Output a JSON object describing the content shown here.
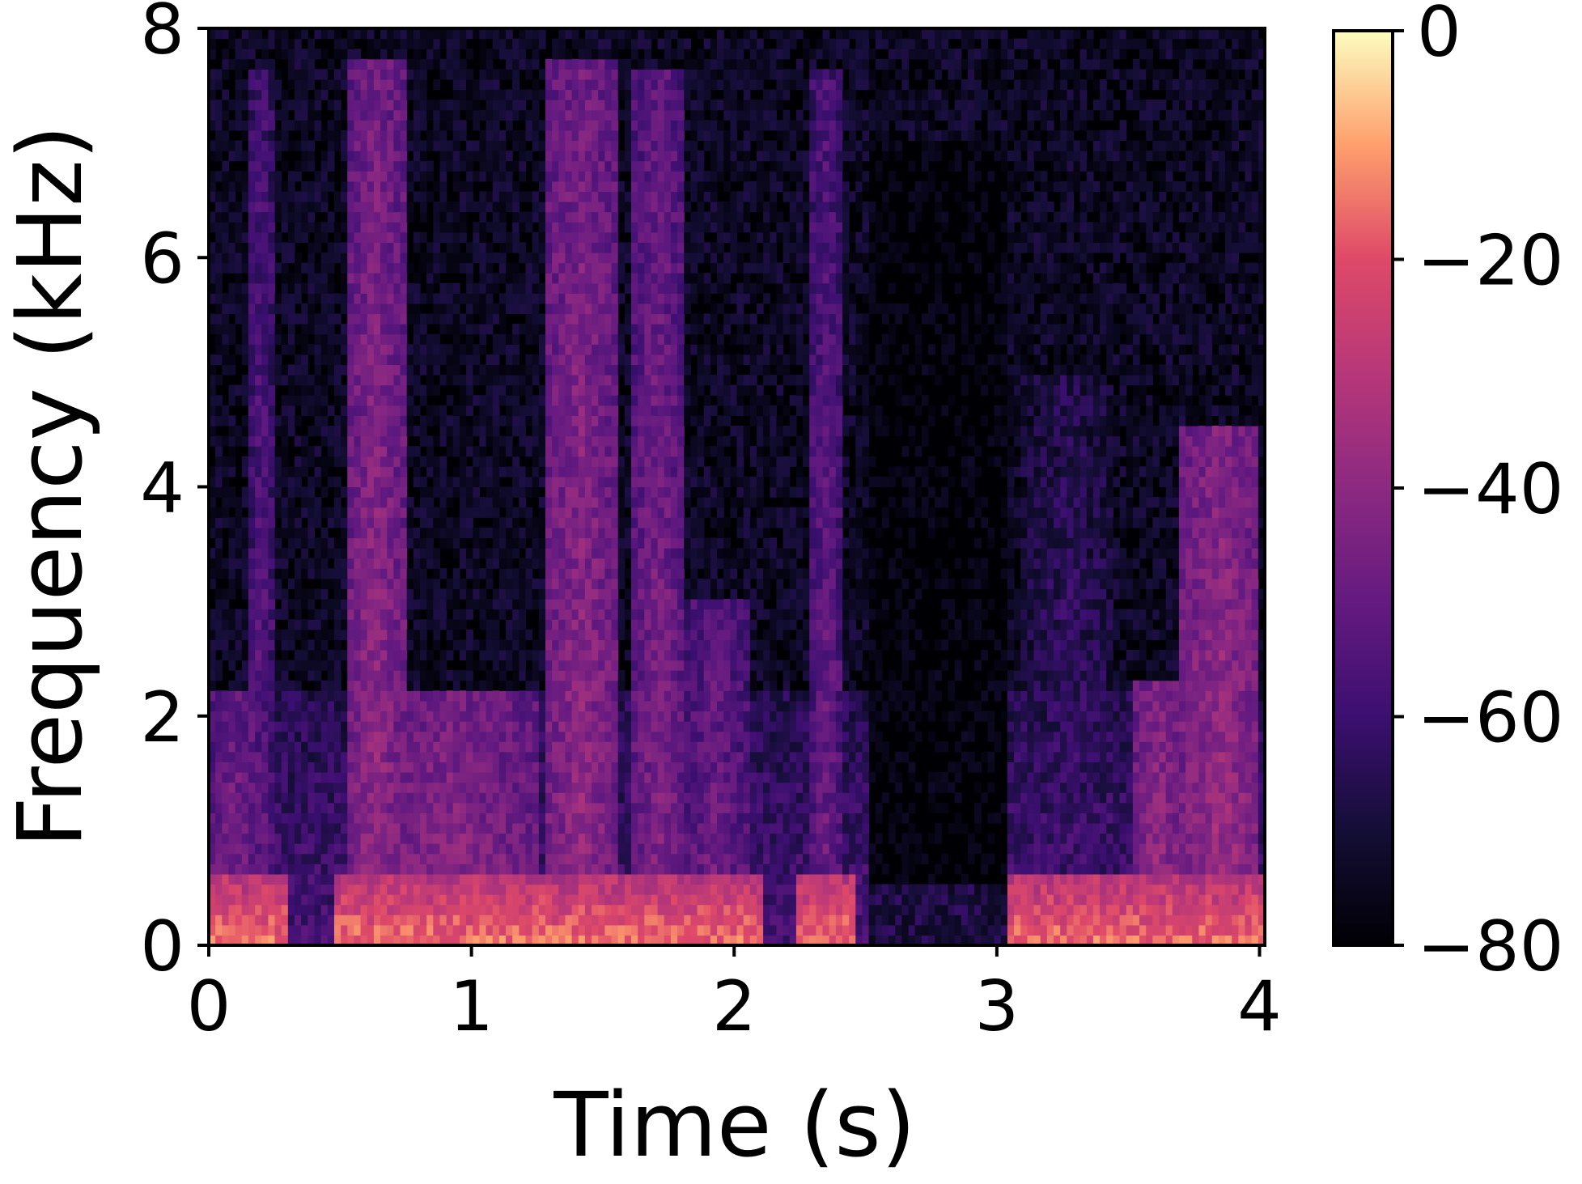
{
  "chart_data": {
    "type": "heatmap",
    "subtype": "spectrogram",
    "xlabel": "Time (s)",
    "ylabel": "Frequency (kHz)",
    "xlim": [
      0,
      4.02
    ],
    "ylim": [
      0,
      8
    ],
    "x_ticks": [
      "0",
      "1",
      "2",
      "3",
      "4"
    ],
    "y_ticks": [
      "0",
      "2",
      "4",
      "6",
      "8"
    ],
    "colormap": "magma",
    "colorbar": {
      "range": [
        -80,
        0
      ],
      "ticks": [
        "0",
        "−20",
        "−40",
        "−60",
        "−80"
      ]
    },
    "grid": false,
    "energy_events": [
      {
        "t_start": 0.0,
        "t_end": 0.2,
        "f_max_khz": 2.2,
        "level_db": -42
      },
      {
        "t_start": 0.15,
        "t_end": 0.25,
        "f_max_khz": 7.6,
        "level_db": -50
      },
      {
        "t_start": 0.52,
        "t_end": 0.75,
        "f_max_khz": 7.7,
        "level_db": -38
      },
      {
        "t_start": 0.6,
        "t_end": 1.25,
        "f_max_khz": 2.2,
        "level_db": -38
      },
      {
        "t_start": 1.28,
        "t_end": 1.55,
        "f_max_khz": 7.7,
        "level_db": -38
      },
      {
        "t_start": 1.62,
        "t_end": 1.8,
        "f_max_khz": 7.6,
        "level_db": -42
      },
      {
        "t_start": 1.8,
        "t_end": 2.05,
        "f_max_khz": 3.0,
        "level_db": -45
      },
      {
        "t_start": 2.28,
        "t_end": 2.42,
        "f_max_khz": 7.6,
        "level_db": -48
      },
      {
        "t_start": 3.1,
        "t_end": 3.45,
        "f_max_khz": 5.0,
        "level_db": -58
      },
      {
        "t_start": 3.53,
        "t_end": 3.7,
        "f_max_khz": 2.3,
        "level_db": -36
      },
      {
        "t_start": 3.7,
        "t_end": 4.0,
        "f_max_khz": 4.5,
        "level_db": -35
      }
    ],
    "silence_region": {
      "t_start": 2.5,
      "t_end": 3.05,
      "f_min_khz": 0.5,
      "f_max_khz": 7.0
    }
  }
}
